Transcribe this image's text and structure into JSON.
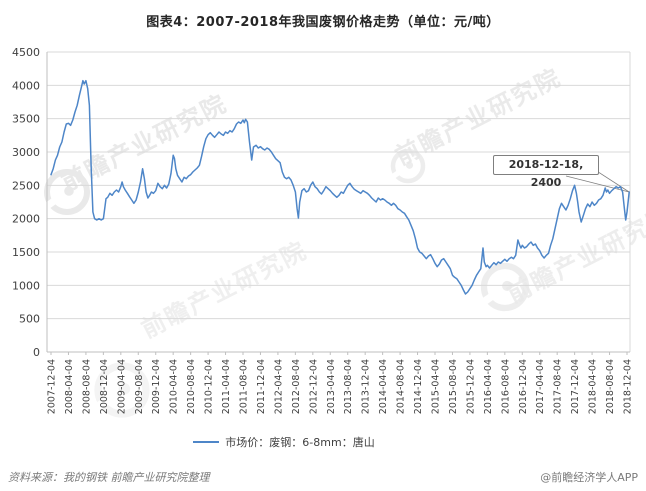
{
  "title": "图表4：2007-2018年我国废钢价格走势（单位：元/吨）",
  "legend": {
    "label": "市场价：废钢：6-8mm：唐山"
  },
  "annotation": {
    "label": "2018-12-18, 2400",
    "date": "2018-12-18",
    "value": 2400
  },
  "footer": {
    "source": "资料来源：我的钢铁 前瞻产业研究院整理",
    "credit": "@前瞻经济学人APP"
  },
  "watermark": {
    "text": "前瞻产业研究院"
  },
  "colors": {
    "line": "#4e86c8",
    "grid": "#d9d9d9",
    "axis": "#bfbfbf",
    "tick_text": "#404040",
    "watermark": "#c4c4c4",
    "leader": "#808080"
  },
  "chart_data": {
    "type": "line",
    "title": "图表4：2007-2018年我国废钢价格走势（单位：元/吨）",
    "ylabel": "元/吨",
    "ylim": [
      0,
      4500
    ],
    "ytick_step": 500,
    "grid": "horizontal",
    "legend_position": "bottom",
    "x_note": "series x = months after 2007-12-04; one x tick every 4 months",
    "x_ticks": [
      "2007-12-04",
      "2008-04-04",
      "2008-08-04",
      "2008-12-04",
      "2009-04-04",
      "2009-08-04",
      "2009-12-04",
      "2010-04-04",
      "2010-08-04",
      "2010-12-04",
      "2011-04-04",
      "2011-08-04",
      "2011-12-04",
      "2012-04-04",
      "2012-08-04",
      "2012-12-04",
      "2013-04-04",
      "2013-08-04",
      "2013-12-04",
      "2014-04-04",
      "2014-08-04",
      "2014-12-04",
      "2015-04-04",
      "2015-08-04",
      "2015-12-04",
      "2016-04-04",
      "2016-08-04",
      "2016-12-04",
      "2017-04-04",
      "2017-08-04",
      "2017-12-04",
      "2018-04-04",
      "2018-08-04",
      "2018-12-04"
    ],
    "series": [
      {
        "name": "市场价：废钢：6-8mm：唐山",
        "points": [
          [
            0,
            2660
          ],
          [
            0.5,
            2750
          ],
          [
            1,
            2880
          ],
          [
            1.5,
            2950
          ],
          [
            2,
            3075
          ],
          [
            2.5,
            3150
          ],
          [
            3,
            3300
          ],
          [
            3.5,
            3420
          ],
          [
            4,
            3430
          ],
          [
            4.5,
            3400
          ],
          [
            5,
            3480
          ],
          [
            5.5,
            3600
          ],
          [
            6,
            3700
          ],
          [
            6.5,
            3850
          ],
          [
            7,
            3980
          ],
          [
            7.3,
            4070
          ],
          [
            7.6,
            4020
          ],
          [
            8,
            4070
          ],
          [
            8.4,
            3950
          ],
          [
            8.8,
            3700
          ],
          [
            9.2,
            2800
          ],
          [
            9.6,
            2100
          ],
          [
            10,
            2000
          ],
          [
            10.5,
            1980
          ],
          [
            11,
            2000
          ],
          [
            11.5,
            1980
          ],
          [
            12,
            2000
          ],
          [
            12.6,
            2300
          ],
          [
            13,
            2320
          ],
          [
            13.5,
            2380
          ],
          [
            14,
            2350
          ],
          [
            14.5,
            2400
          ],
          [
            15,
            2430
          ],
          [
            15.5,
            2400
          ],
          [
            16,
            2480
          ],
          [
            16.3,
            2550
          ],
          [
            16.6,
            2480
          ],
          [
            17,
            2430
          ],
          [
            17.5,
            2380
          ],
          [
            18,
            2330
          ],
          [
            18.5,
            2280
          ],
          [
            19,
            2230
          ],
          [
            19.5,
            2280
          ],
          [
            20,
            2400
          ],
          [
            20.5,
            2550
          ],
          [
            21,
            2750
          ],
          [
            21.4,
            2600
          ],
          [
            21.8,
            2400
          ],
          [
            22.2,
            2310
          ],
          [
            22.6,
            2350
          ],
          [
            23,
            2400
          ],
          [
            23.5,
            2380
          ],
          [
            24,
            2420
          ],
          [
            24.5,
            2530
          ],
          [
            25,
            2480
          ],
          [
            25.5,
            2450
          ],
          [
            26,
            2500
          ],
          [
            26.5,
            2460
          ],
          [
            27,
            2520
          ],
          [
            27.5,
            2680
          ],
          [
            28,
            2950
          ],
          [
            28.3,
            2900
          ],
          [
            28.6,
            2750
          ],
          [
            29,
            2650
          ],
          [
            29.5,
            2600
          ],
          [
            30,
            2550
          ],
          [
            30.5,
            2620
          ],
          [
            31,
            2600
          ],
          [
            31.5,
            2640
          ],
          [
            32,
            2660
          ],
          [
            32.5,
            2700
          ],
          [
            33,
            2730
          ],
          [
            33.5,
            2760
          ],
          [
            34,
            2800
          ],
          [
            34.5,
            2930
          ],
          [
            35,
            3080
          ],
          [
            35.5,
            3200
          ],
          [
            36,
            3260
          ],
          [
            36.5,
            3290
          ],
          [
            37,
            3250
          ],
          [
            37.5,
            3220
          ],
          [
            38,
            3260
          ],
          [
            38.5,
            3300
          ],
          [
            39,
            3270
          ],
          [
            39.5,
            3250
          ],
          [
            40,
            3300
          ],
          [
            40.5,
            3280
          ],
          [
            41,
            3320
          ],
          [
            41.5,
            3300
          ],
          [
            42,
            3350
          ],
          [
            42.5,
            3420
          ],
          [
            43,
            3450
          ],
          [
            43.5,
            3430
          ],
          [
            44,
            3480
          ],
          [
            44.3,
            3440
          ],
          [
            44.6,
            3490
          ],
          [
            45,
            3450
          ],
          [
            45.5,
            3150
          ],
          [
            46,
            2880
          ],
          [
            46.4,
            3075
          ],
          [
            47,
            3100
          ],
          [
            47.5,
            3060
          ],
          [
            48,
            3080
          ],
          [
            48.5,
            3050
          ],
          [
            49,
            3030
          ],
          [
            49.5,
            3060
          ],
          [
            50,
            3040
          ],
          [
            50.5,
            3000
          ],
          [
            51,
            2950
          ],
          [
            51.5,
            2900
          ],
          [
            52,
            2870
          ],
          [
            52.5,
            2840
          ],
          [
            53,
            2700
          ],
          [
            53.5,
            2620
          ],
          [
            54,
            2600
          ],
          [
            54.5,
            2620
          ],
          [
            55,
            2580
          ],
          [
            55.5,
            2500
          ],
          [
            56,
            2400
          ],
          [
            56.4,
            2150
          ],
          [
            56.7,
            2010
          ],
          [
            57,
            2250
          ],
          [
            57.5,
            2420
          ],
          [
            58,
            2450
          ],
          [
            58.5,
            2400
          ],
          [
            59,
            2420
          ],
          [
            59.5,
            2500
          ],
          [
            60,
            2550
          ],
          [
            60.5,
            2480
          ],
          [
            61,
            2450
          ],
          [
            61.5,
            2400
          ],
          [
            62,
            2370
          ],
          [
            62.5,
            2420
          ],
          [
            63,
            2480
          ],
          [
            63.5,
            2450
          ],
          [
            64,
            2420
          ],
          [
            64.5,
            2380
          ],
          [
            65,
            2350
          ],
          [
            65.5,
            2320
          ],
          [
            66,
            2350
          ],
          [
            66.5,
            2400
          ],
          [
            67,
            2380
          ],
          [
            67.5,
            2440
          ],
          [
            68,
            2500
          ],
          [
            68.5,
            2530
          ],
          [
            69,
            2480
          ],
          [
            69.5,
            2440
          ],
          [
            70,
            2420
          ],
          [
            70.5,
            2400
          ],
          [
            71,
            2380
          ],
          [
            71.5,
            2420
          ],
          [
            72,
            2400
          ],
          [
            72.5,
            2380
          ],
          [
            73,
            2350
          ],
          [
            73.5,
            2310
          ],
          [
            74,
            2280
          ],
          [
            74.5,
            2250
          ],
          [
            75,
            2310
          ],
          [
            75.5,
            2280
          ],
          [
            76,
            2300
          ],
          [
            76.5,
            2280
          ],
          [
            77,
            2250
          ],
          [
            77.5,
            2230
          ],
          [
            78,
            2200
          ],
          [
            78.5,
            2230
          ],
          [
            79,
            2200
          ],
          [
            79.5,
            2150
          ],
          [
            80,
            2130
          ],
          [
            80.5,
            2100
          ],
          [
            81,
            2080
          ],
          [
            81.5,
            2030
          ],
          [
            82,
            1980
          ],
          [
            82.5,
            1900
          ],
          [
            83,
            1820
          ],
          [
            83.5,
            1700
          ],
          [
            84,
            1560
          ],
          [
            84.5,
            1500
          ],
          [
            85,
            1480
          ],
          [
            85.5,
            1440
          ],
          [
            86,
            1400
          ],
          [
            86.5,
            1440
          ],
          [
            87,
            1460
          ],
          [
            87.5,
            1400
          ],
          [
            88,
            1330
          ],
          [
            88.5,
            1280
          ],
          [
            89,
            1320
          ],
          [
            89.5,
            1380
          ],
          [
            90,
            1400
          ],
          [
            90.5,
            1350
          ],
          [
            91,
            1300
          ],
          [
            91.5,
            1250
          ],
          [
            92,
            1150
          ],
          [
            92.5,
            1120
          ],
          [
            93,
            1100
          ],
          [
            93.5,
            1050
          ],
          [
            94,
            1000
          ],
          [
            94.5,
            930
          ],
          [
            95,
            870
          ],
          [
            95.5,
            900
          ],
          [
            96,
            950
          ],
          [
            96.5,
            1000
          ],
          [
            97,
            1080
          ],
          [
            97.5,
            1150
          ],
          [
            98,
            1200
          ],
          [
            98.5,
            1250
          ],
          [
            99,
            1560
          ],
          [
            99.3,
            1350
          ],
          [
            99.7,
            1280
          ],
          [
            100,
            1300
          ],
          [
            100.5,
            1260
          ],
          [
            101,
            1300
          ],
          [
            101.5,
            1340
          ],
          [
            102,
            1310
          ],
          [
            102.5,
            1350
          ],
          [
            103,
            1330
          ],
          [
            103.5,
            1360
          ],
          [
            104,
            1390
          ],
          [
            104.5,
            1360
          ],
          [
            105,
            1400
          ],
          [
            105.5,
            1420
          ],
          [
            106,
            1400
          ],
          [
            106.5,
            1450
          ],
          [
            107,
            1680
          ],
          [
            107.4,
            1600
          ],
          [
            107.7,
            1560
          ],
          [
            108,
            1600
          ],
          [
            108.5,
            1560
          ],
          [
            109,
            1580
          ],
          [
            109.5,
            1620
          ],
          [
            110,
            1650
          ],
          [
            110.5,
            1600
          ],
          [
            111,
            1620
          ],
          [
            111.5,
            1560
          ],
          [
            112,
            1520
          ],
          [
            112.5,
            1450
          ],
          [
            113,
            1410
          ],
          [
            113.5,
            1450
          ],
          [
            114,
            1480
          ],
          [
            114.5,
            1600
          ],
          [
            115,
            1700
          ],
          [
            115.5,
            1850
          ],
          [
            116,
            2000
          ],
          [
            116.5,
            2150
          ],
          [
            117,
            2230
          ],
          [
            117.5,
            2180
          ],
          [
            118,
            2130
          ],
          [
            118.5,
            2200
          ],
          [
            119,
            2300
          ],
          [
            119.5,
            2420
          ],
          [
            120,
            2500
          ],
          [
            120.4,
            2380
          ],
          [
            120.7,
            2250
          ],
          [
            121,
            2100
          ],
          [
            121.5,
            1950
          ],
          [
            122,
            2050
          ],
          [
            122.5,
            2150
          ],
          [
            123,
            2220
          ],
          [
            123.5,
            2180
          ],
          [
            124,
            2250
          ],
          [
            124.5,
            2200
          ],
          [
            125,
            2230
          ],
          [
            125.5,
            2280
          ],
          [
            126,
            2300
          ],
          [
            126.5,
            2350
          ],
          [
            127,
            2460
          ],
          [
            127.3,
            2400
          ],
          [
            127.6,
            2430
          ],
          [
            128,
            2380
          ],
          [
            128.5,
            2420
          ],
          [
            129,
            2450
          ],
          [
            129.5,
            2480
          ],
          [
            130,
            2460
          ],
          [
            130.5,
            2480
          ],
          [
            131,
            2400
          ],
          [
            131.4,
            2150
          ],
          [
            131.7,
            1980
          ],
          [
            132,
            2100
          ],
          [
            132.5,
            2400
          ]
        ]
      }
    ]
  }
}
